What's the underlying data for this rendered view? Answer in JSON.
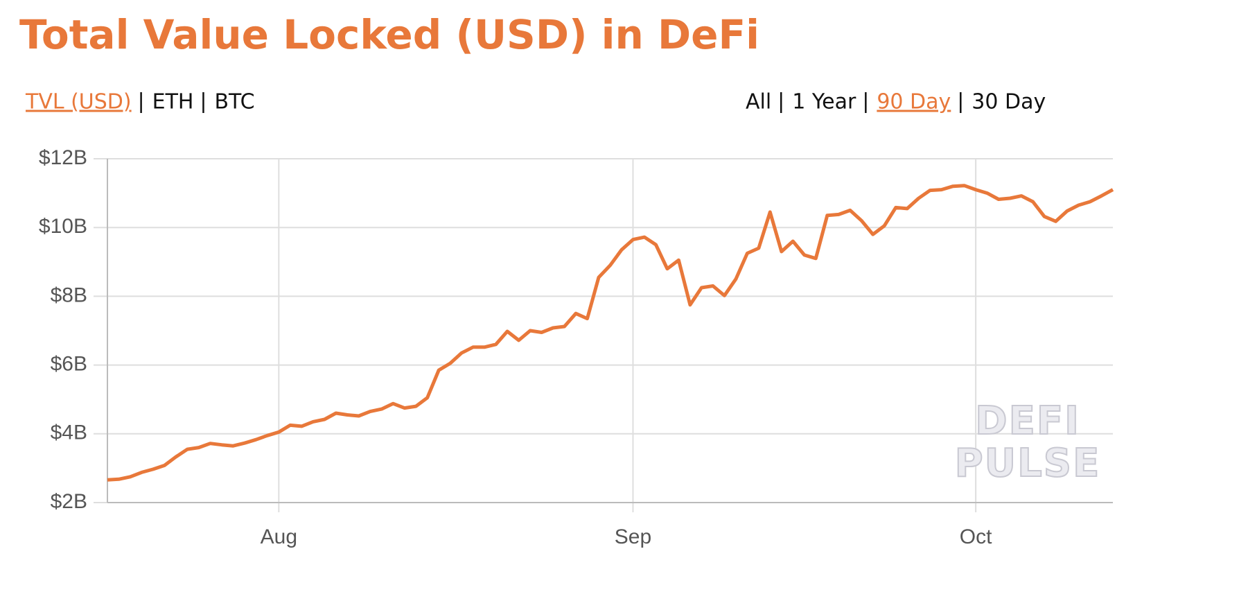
{
  "header": {
    "title": "Total Value Locked (USD) in DeFi"
  },
  "tabs": {
    "unit": [
      "TVL (USD)",
      "ETH",
      "BTC"
    ],
    "unit_selected": 0,
    "range": [
      "All",
      "1 Year",
      "90 Day",
      "30 Day"
    ],
    "range_selected": 2,
    "accent": "#e8783a"
  },
  "watermark": [
    "DEFI",
    "PULSE"
  ],
  "chart_data": {
    "type": "line",
    "color": "#e8783a",
    "grid": true,
    "categories": [
      null,
      null,
      null,
      null,
      null,
      null,
      null,
      null,
      null,
      null,
      null,
      null,
      null,
      null,
      null,
      "Aug",
      null,
      null,
      null,
      null,
      null,
      null,
      null,
      null,
      null,
      null,
      null,
      null,
      null,
      null,
      null,
      null,
      null,
      null,
      null,
      null,
      null,
      null,
      null,
      null,
      null,
      null,
      null,
      null,
      null,
      null,
      "Sep",
      null,
      null,
      null,
      null,
      null,
      null,
      null,
      null,
      null,
      null,
      null,
      null,
      null,
      null,
      null,
      null,
      null,
      null,
      null,
      null,
      null,
      null,
      null,
      null,
      null,
      null,
      null,
      null,
      null,
      "Oct",
      null,
      null,
      null,
      null,
      null,
      null,
      null,
      null,
      null,
      null,
      null,
      null
    ],
    "values": [
      2.66,
      2.68,
      2.75,
      2.88,
      2.97,
      3.08,
      3.33,
      3.55,
      3.6,
      3.72,
      3.68,
      3.65,
      3.73,
      3.83,
      3.95,
      4.05,
      4.25,
      4.22,
      4.35,
      4.42,
      4.6,
      4.55,
      4.52,
      4.65,
      4.72,
      4.88,
      4.75,
      4.8,
      5.05,
      5.85,
      6.05,
      6.35,
      6.52,
      6.52,
      6.6,
      6.98,
      6.72,
      7.0,
      6.95,
      7.08,
      7.12,
      7.5,
      7.35,
      8.55,
      8.9,
      9.35,
      9.65,
      9.72,
      9.5,
      8.8,
      9.05,
      7.75,
      8.25,
      8.3,
      8.02,
      8.5,
      9.25,
      9.4,
      10.45,
      9.3,
      9.6,
      9.2,
      9.1,
      10.35,
      10.38,
      10.5,
      10.2,
      9.8,
      10.05,
      10.58,
      10.55,
      10.85,
      11.08,
      11.1,
      11.2,
      11.22,
      11.1,
      11.0,
      10.82,
      10.85,
      10.92,
      10.75,
      10.32,
      10.18,
      10.48,
      10.65,
      10.75,
      10.92,
      11.1
    ],
    "ylim": [
      2,
      12
    ],
    "yticks": [
      {
        "value": 2,
        "label": "$2B"
      },
      {
        "value": 4,
        "label": "$4B"
      },
      {
        "value": 6,
        "label": "$6B"
      },
      {
        "value": 8,
        "label": "$8B"
      },
      {
        "value": 10,
        "label": "$10B"
      },
      {
        "value": 12,
        "label": "$12B"
      }
    ]
  }
}
